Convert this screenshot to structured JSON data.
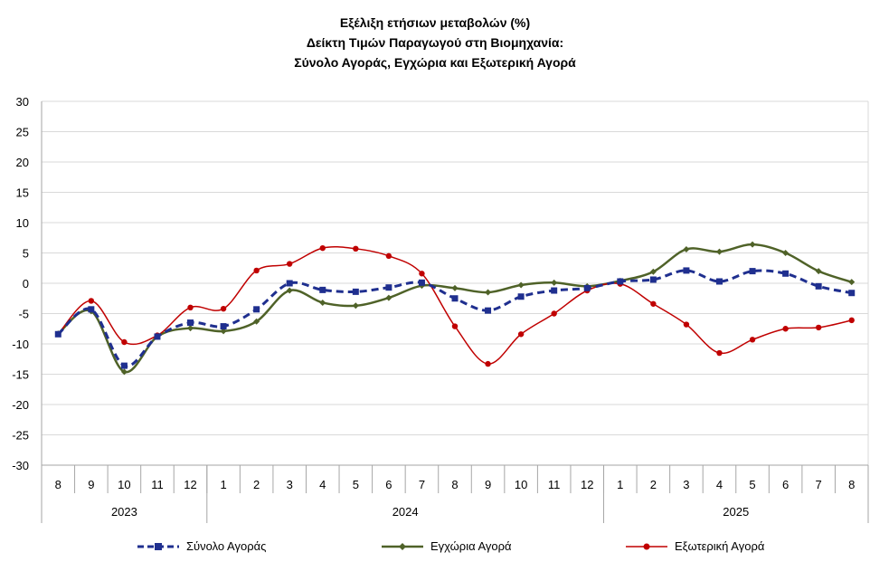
{
  "title": {
    "line1": "Εξέλιξη ετήσιων μεταβολών (%)",
    "line2": "Δείκτη Τιμών Παραγωγού στη Βιομηχανία:",
    "line3": "Σύνολο Αγοράς, Εγχώρια και Εξωτερική Αγορά"
  },
  "chart_data": {
    "type": "line",
    "title": "Εξέλιξη ετήσιων μεταβολών (%) Δείκτη Τιμών Παραγωγού στη Βιομηχανία: Σύνολο Αγοράς, Εγχώρια και Εξωτερική Αγορά",
    "categories": [
      "8",
      "9",
      "10",
      "11",
      "12",
      "1",
      "2",
      "3",
      "4",
      "5",
      "6",
      "7",
      "8",
      "9",
      "10",
      "11",
      "12",
      "1",
      "2",
      "3",
      "4",
      "5",
      "6",
      "7",
      "8"
    ],
    "year_groups": [
      {
        "label": "2023",
        "count": 5
      },
      {
        "label": "2024",
        "count": 12
      },
      {
        "label": "2025",
        "count": 8
      }
    ],
    "ylim": [
      -30,
      30
    ],
    "yticks": [
      30,
      25,
      20,
      15,
      10,
      5,
      0,
      -5,
      -10,
      -15,
      -20,
      -25,
      -30
    ],
    "grid": true,
    "legend_position": "bottom",
    "series": [
      {
        "name": "Σύνολο Αγοράς",
        "color": "#1f2f8f",
        "style": "dashed",
        "marker": "square",
        "values": [
          -8.4,
          -4.3,
          -13.6,
          -8.8,
          -6.5,
          -7.1,
          -4.3,
          0.0,
          -1.1,
          -1.4,
          -0.7,
          0.1,
          -2.5,
          -4.5,
          -2.2,
          -1.2,
          -0.8,
          0.3,
          0.6,
          2.1,
          0.3,
          2.0,
          1.6,
          -0.5,
          -1.6
        ]
      },
      {
        "name": "Εγχώρια Αγορά",
        "color": "#4f6228",
        "style": "solid",
        "marker": "diamond",
        "values": [
          -8.3,
          -4.6,
          -14.6,
          -8.8,
          -7.4,
          -7.9,
          -6.3,
          -1.2,
          -3.2,
          -3.7,
          -2.4,
          -0.4,
          -0.8,
          -1.5,
          -0.3,
          0.1,
          -0.5,
          0.4,
          1.9,
          5.6,
          5.2,
          6.4,
          5.0,
          2.0,
          0.2
        ]
      },
      {
        "name": "Εξωτερική Αγορά",
        "color": "#c00000",
        "style": "solid",
        "marker": "circle",
        "values": [
          -8.4,
          -2.9,
          -9.7,
          -8.6,
          -4.0,
          -4.2,
          2.1,
          3.2,
          5.8,
          5.7,
          4.5,
          1.6,
          -7.1,
          -13.3,
          -8.4,
          -5.0,
          -1.2,
          -0.1,
          -3.4,
          -6.8,
          -11.5,
          -9.3,
          -7.5,
          -7.3,
          -6.1
        ]
      }
    ]
  }
}
